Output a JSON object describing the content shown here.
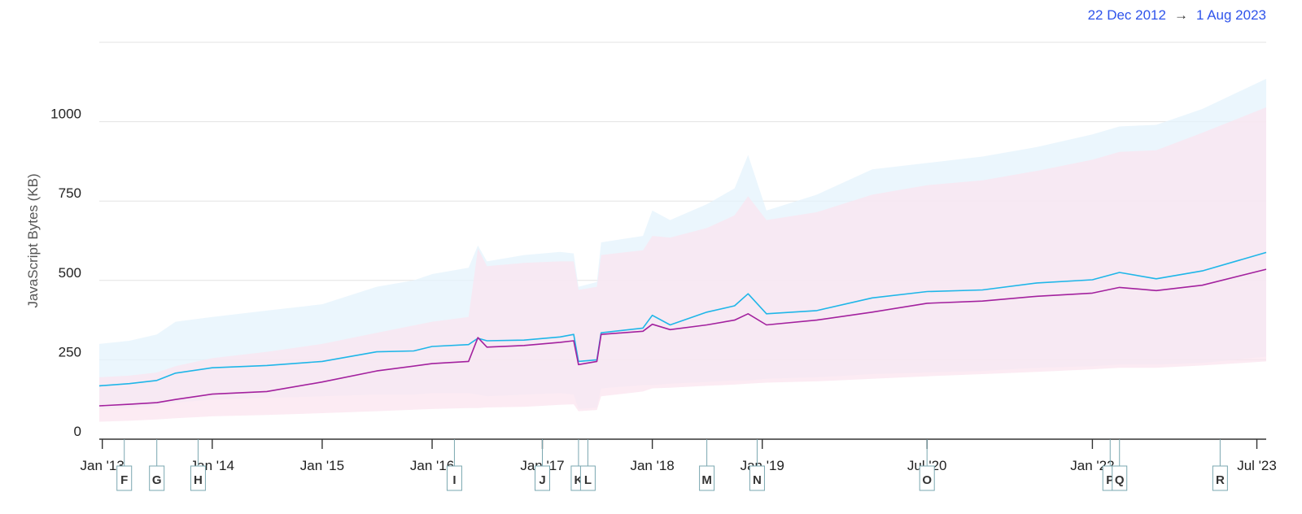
{
  "header": {
    "range_start": "22 Dec 2012",
    "range_arrow": "→",
    "range_end": "1 Aug 2023"
  },
  "chart_data": {
    "type": "line",
    "title": "",
    "xlabel": "",
    "ylabel": "JavaScript Bytes (KB)",
    "ylim": [
      0,
      1250
    ],
    "xlim": [
      "2012-12-22",
      "2023-08-01"
    ],
    "grid": true,
    "y_ticks": [
      0,
      250,
      500,
      750,
      1000
    ],
    "x_ticks": [
      {
        "date": "2013-01-01",
        "label": "Jan '13"
      },
      {
        "date": "2014-01-01",
        "label": "Jan '14"
      },
      {
        "date": "2015-01-01",
        "label": "Jan '15"
      },
      {
        "date": "2016-01-01",
        "label": "Jan '16"
      },
      {
        "date": "2017-01-01",
        "label": "Jan '17"
      },
      {
        "date": "2018-01-01",
        "label": "Jan '18"
      },
      {
        "date": "2019-01-01",
        "label": "Jan '19"
      },
      {
        "date": "2020-07-01",
        "label": "Jul '20"
      },
      {
        "date": "2022-01-01",
        "label": "Jan '22"
      },
      {
        "date": "2023-07-01",
        "label": "Jul '23"
      }
    ],
    "annotations": [
      {
        "label": "F",
        "date": "2013-03-15"
      },
      {
        "label": "G",
        "date": "2013-07-01"
      },
      {
        "label": "H",
        "date": "2013-11-15"
      },
      {
        "label": "I",
        "date": "2016-03-15"
      },
      {
        "label": "J",
        "date": "2017-01-01"
      },
      {
        "label": "K",
        "date": "2017-05-01"
      },
      {
        "label": "L",
        "date": "2017-06-01"
      },
      {
        "label": "M",
        "date": "2018-07-01"
      },
      {
        "label": "N",
        "date": "2018-12-15"
      },
      {
        "label": "O",
        "date": "2020-07-01"
      },
      {
        "label": "P",
        "date": "2022-03-01"
      },
      {
        "label": "Q",
        "date": "2022-04-01"
      },
      {
        "label": "R",
        "date": "2023-03-01"
      }
    ],
    "series": [
      {
        "color": "#1fb6e8",
        "band_color": "#e4f3fc",
        "points": [
          {
            "x": "2012-12-22",
            "y": 168,
            "low": 95,
            "high": 300
          },
          {
            "x": "2013-04-01",
            "y": 175,
            "low": 98,
            "high": 310
          },
          {
            "x": "2013-07-01",
            "y": 185,
            "low": 105,
            "high": 330
          },
          {
            "x": "2013-09-01",
            "y": 208,
            "low": 115,
            "high": 370
          },
          {
            "x": "2014-01-01",
            "y": 225,
            "low": 125,
            "high": 385
          },
          {
            "x": "2014-07-01",
            "y": 232,
            "low": 130,
            "high": 405
          },
          {
            "x": "2015-01-01",
            "y": 245,
            "low": 135,
            "high": 425
          },
          {
            "x": "2015-07-01",
            "y": 275,
            "low": 140,
            "high": 480
          },
          {
            "x": "2015-11-01",
            "y": 278,
            "low": 140,
            "high": 500
          },
          {
            "x": "2016-01-01",
            "y": 292,
            "low": 145,
            "high": 520
          },
          {
            "x": "2016-05-01",
            "y": 298,
            "low": 145,
            "high": 540
          },
          {
            "x": "2016-06-01",
            "y": 318,
            "low": 140,
            "high": 610
          },
          {
            "x": "2016-07-01",
            "y": 310,
            "low": 135,
            "high": 560
          },
          {
            "x": "2016-11-01",
            "y": 312,
            "low": 140,
            "high": 580
          },
          {
            "x": "2017-03-01",
            "y": 322,
            "low": 145,
            "high": 590
          },
          {
            "x": "2017-04-15",
            "y": 330,
            "low": 140,
            "high": 585
          },
          {
            "x": "2017-05-01",
            "y": 245,
            "low": 95,
            "high": 480
          },
          {
            "x": "2017-07-01",
            "y": 250,
            "low": 100,
            "high": 495
          },
          {
            "x": "2017-07-15",
            "y": 335,
            "low": 160,
            "high": 620
          },
          {
            "x": "2017-12-01",
            "y": 350,
            "low": 170,
            "high": 640
          },
          {
            "x": "2018-01-01",
            "y": 390,
            "low": 170,
            "high": 720
          },
          {
            "x": "2018-03-01",
            "y": 360,
            "low": 175,
            "high": 690
          },
          {
            "x": "2018-07-01",
            "y": 400,
            "low": 180,
            "high": 740
          },
          {
            "x": "2018-10-01",
            "y": 420,
            "low": 185,
            "high": 790
          },
          {
            "x": "2018-11-15",
            "y": 458,
            "low": 185,
            "high": 895
          },
          {
            "x": "2019-01-15",
            "y": 395,
            "low": 190,
            "high": 720
          },
          {
            "x": "2019-07-01",
            "y": 405,
            "low": 195,
            "high": 770
          },
          {
            "x": "2020-01-01",
            "y": 445,
            "low": 205,
            "high": 850
          },
          {
            "x": "2020-07-01",
            "y": 465,
            "low": 210,
            "high": 870
          },
          {
            "x": "2021-01-01",
            "y": 470,
            "low": 215,
            "high": 890
          },
          {
            "x": "2021-07-01",
            "y": 492,
            "low": 225,
            "high": 920
          },
          {
            "x": "2022-01-01",
            "y": 502,
            "low": 230,
            "high": 960
          },
          {
            "x": "2022-04-01",
            "y": 525,
            "low": 235,
            "high": 985
          },
          {
            "x": "2022-08-01",
            "y": 505,
            "low": 235,
            "high": 990
          },
          {
            "x": "2023-01-01",
            "y": 530,
            "low": 240,
            "high": 1040
          },
          {
            "x": "2023-08-01",
            "y": 588,
            "low": 260,
            "high": 1135
          }
        ]
      },
      {
        "color": "#a3219e",
        "band_color": "#fbe4ef",
        "points": [
          {
            "x": "2012-12-22",
            "y": 105,
            "low": 55,
            "high": 195
          },
          {
            "x": "2013-04-01",
            "y": 110,
            "low": 58,
            "high": 200
          },
          {
            "x": "2013-07-01",
            "y": 115,
            "low": 62,
            "high": 210
          },
          {
            "x": "2013-09-01",
            "y": 125,
            "low": 66,
            "high": 230
          },
          {
            "x": "2014-01-01",
            "y": 142,
            "low": 72,
            "high": 255
          },
          {
            "x": "2014-07-01",
            "y": 150,
            "low": 76,
            "high": 275
          },
          {
            "x": "2015-01-01",
            "y": 180,
            "low": 82,
            "high": 300
          },
          {
            "x": "2015-07-01",
            "y": 215,
            "low": 88,
            "high": 335
          },
          {
            "x": "2016-01-01",
            "y": 238,
            "low": 95,
            "high": 370
          },
          {
            "x": "2016-05-01",
            "y": 245,
            "low": 98,
            "high": 385
          },
          {
            "x": "2016-06-01",
            "y": 320,
            "low": 98,
            "high": 600
          },
          {
            "x": "2016-07-01",
            "y": 290,
            "low": 100,
            "high": 545
          },
          {
            "x": "2016-11-01",
            "y": 295,
            "low": 102,
            "high": 555
          },
          {
            "x": "2017-03-01",
            "y": 305,
            "low": 108,
            "high": 560
          },
          {
            "x": "2017-04-15",
            "y": 310,
            "low": 110,
            "high": 560
          },
          {
            "x": "2017-05-01",
            "y": 235,
            "low": 88,
            "high": 470
          },
          {
            "x": "2017-07-01",
            "y": 245,
            "low": 92,
            "high": 480
          },
          {
            "x": "2017-07-15",
            "y": 330,
            "low": 135,
            "high": 580
          },
          {
            "x": "2017-12-01",
            "y": 340,
            "low": 150,
            "high": 595
          },
          {
            "x": "2018-01-01",
            "y": 362,
            "low": 160,
            "high": 640
          },
          {
            "x": "2018-03-01",
            "y": 345,
            "low": 162,
            "high": 635
          },
          {
            "x": "2018-07-01",
            "y": 360,
            "low": 168,
            "high": 665
          },
          {
            "x": "2018-10-01",
            "y": 375,
            "low": 172,
            "high": 705
          },
          {
            "x": "2018-11-15",
            "y": 395,
            "low": 175,
            "high": 765
          },
          {
            "x": "2019-01-15",
            "y": 360,
            "low": 178,
            "high": 690
          },
          {
            "x": "2019-07-01",
            "y": 375,
            "low": 182,
            "high": 715
          },
          {
            "x": "2020-01-01",
            "y": 400,
            "low": 190,
            "high": 770
          },
          {
            "x": "2020-07-01",
            "y": 428,
            "low": 198,
            "high": 800
          },
          {
            "x": "2021-01-01",
            "y": 435,
            "low": 205,
            "high": 815
          },
          {
            "x": "2021-07-01",
            "y": 450,
            "low": 212,
            "high": 845
          },
          {
            "x": "2022-01-01",
            "y": 460,
            "low": 220,
            "high": 880
          },
          {
            "x": "2022-04-01",
            "y": 478,
            "low": 225,
            "high": 905
          },
          {
            "x": "2022-08-01",
            "y": 468,
            "low": 225,
            "high": 910
          },
          {
            "x": "2023-01-01",
            "y": 485,
            "low": 232,
            "high": 965
          },
          {
            "x": "2023-08-01",
            "y": 535,
            "low": 245,
            "high": 1045
          }
        ]
      }
    ]
  }
}
